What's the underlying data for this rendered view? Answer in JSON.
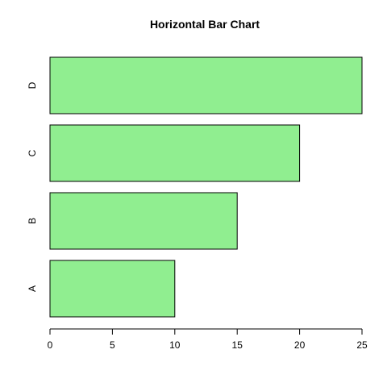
{
  "chart_data": {
    "type": "bar",
    "orientation": "horizontal",
    "title": "Horizontal Bar Chart",
    "categories": [
      "A",
      "B",
      "C",
      "D"
    ],
    "values": [
      10,
      15,
      20,
      25
    ],
    "xlim": [
      0,
      25
    ],
    "xticks": [
      0,
      5,
      10,
      15,
      20,
      25
    ],
    "xlabel": "",
    "ylabel": "",
    "bar_color": "#90EE90",
    "bar_edge_color": "#000000",
    "grid": false,
    "legend": "none"
  }
}
